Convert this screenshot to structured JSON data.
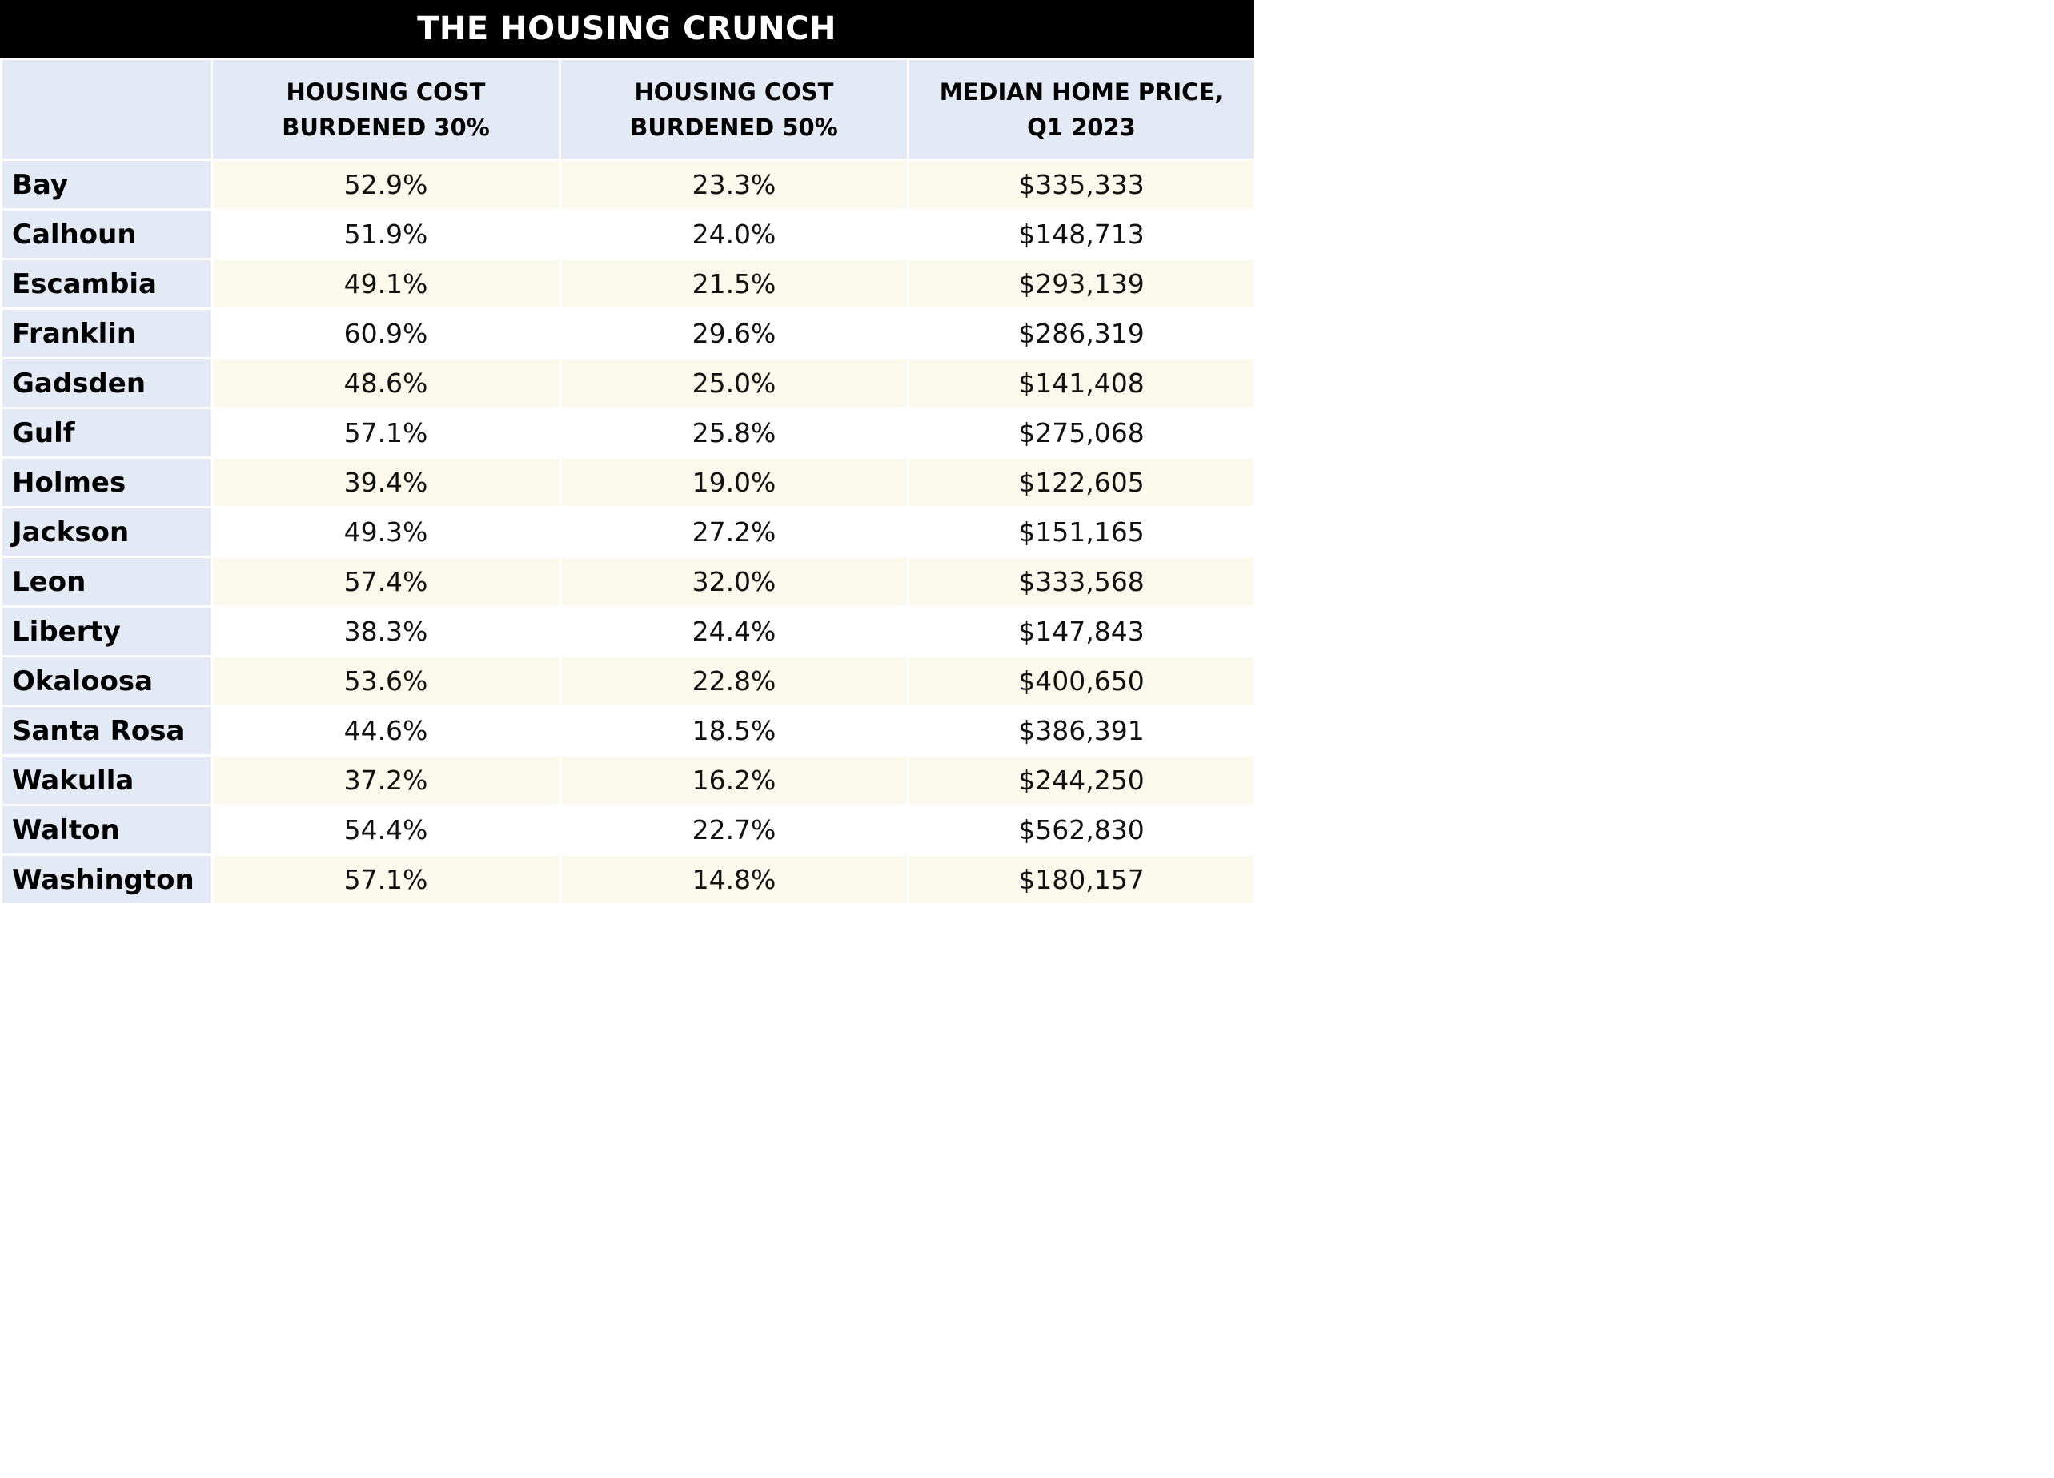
{
  "title": "THE HOUSING CRUNCH",
  "colors": {
    "title_bg": "#000000",
    "header_bg": "#e3eaf5",
    "row_alt_bg": "#fbf8ec"
  },
  "columns": [
    {
      "line1": "",
      "line2": ""
    },
    {
      "line1": "HOUSING COST",
      "line2": "BURDENED 30%"
    },
    {
      "line1": "HOUSING COST",
      "line2": "BURDENED 50%"
    },
    {
      "line1": "MEDIAN HOME PRICE,",
      "line2": "Q1 2023"
    }
  ],
  "rows": [
    {
      "county": "Bay",
      "burdened_30": "52.9%",
      "burdened_50": "23.3%",
      "median_price": "$335,333"
    },
    {
      "county": "Calhoun",
      "burdened_30": "51.9%",
      "burdened_50": "24.0%",
      "median_price": "$148,713"
    },
    {
      "county": "Escambia",
      "burdened_30": "49.1%",
      "burdened_50": "21.5%",
      "median_price": "$293,139"
    },
    {
      "county": "Franklin",
      "burdened_30": "60.9%",
      "burdened_50": "29.6%",
      "median_price": "$286,319"
    },
    {
      "county": "Gadsden",
      "burdened_30": "48.6%",
      "burdened_50": "25.0%",
      "median_price": "$141,408"
    },
    {
      "county": "Gulf",
      "burdened_30": "57.1%",
      "burdened_50": "25.8%",
      "median_price": "$275,068"
    },
    {
      "county": "Holmes",
      "burdened_30": "39.4%",
      "burdened_50": "19.0%",
      "median_price": "$122,605"
    },
    {
      "county": "Jackson",
      "burdened_30": "49.3%",
      "burdened_50": "27.2%",
      "median_price": "$151,165"
    },
    {
      "county": "Leon",
      "burdened_30": "57.4%",
      "burdened_50": "32.0%",
      "median_price": "$333,568"
    },
    {
      "county": "Liberty",
      "burdened_30": "38.3%",
      "burdened_50": "24.4%",
      "median_price": "$147,843"
    },
    {
      "county": "Okaloosa",
      "burdened_30": "53.6%",
      "burdened_50": "22.8%",
      "median_price": "$400,650"
    },
    {
      "county": "Santa Rosa",
      "burdened_30": "44.6%",
      "burdened_50": "18.5%",
      "median_price": "$386,391"
    },
    {
      "county": "Wakulla",
      "burdened_30": "37.2%",
      "burdened_50": "16.2%",
      "median_price": "$244,250"
    },
    {
      "county": "Walton",
      "burdened_30": "54.4%",
      "burdened_50": "22.7%",
      "median_price": "$562,830"
    },
    {
      "county": "Washington",
      "burdened_30": "57.1%",
      "burdened_50": "14.8%",
      "median_price": "$180,157"
    }
  ]
}
